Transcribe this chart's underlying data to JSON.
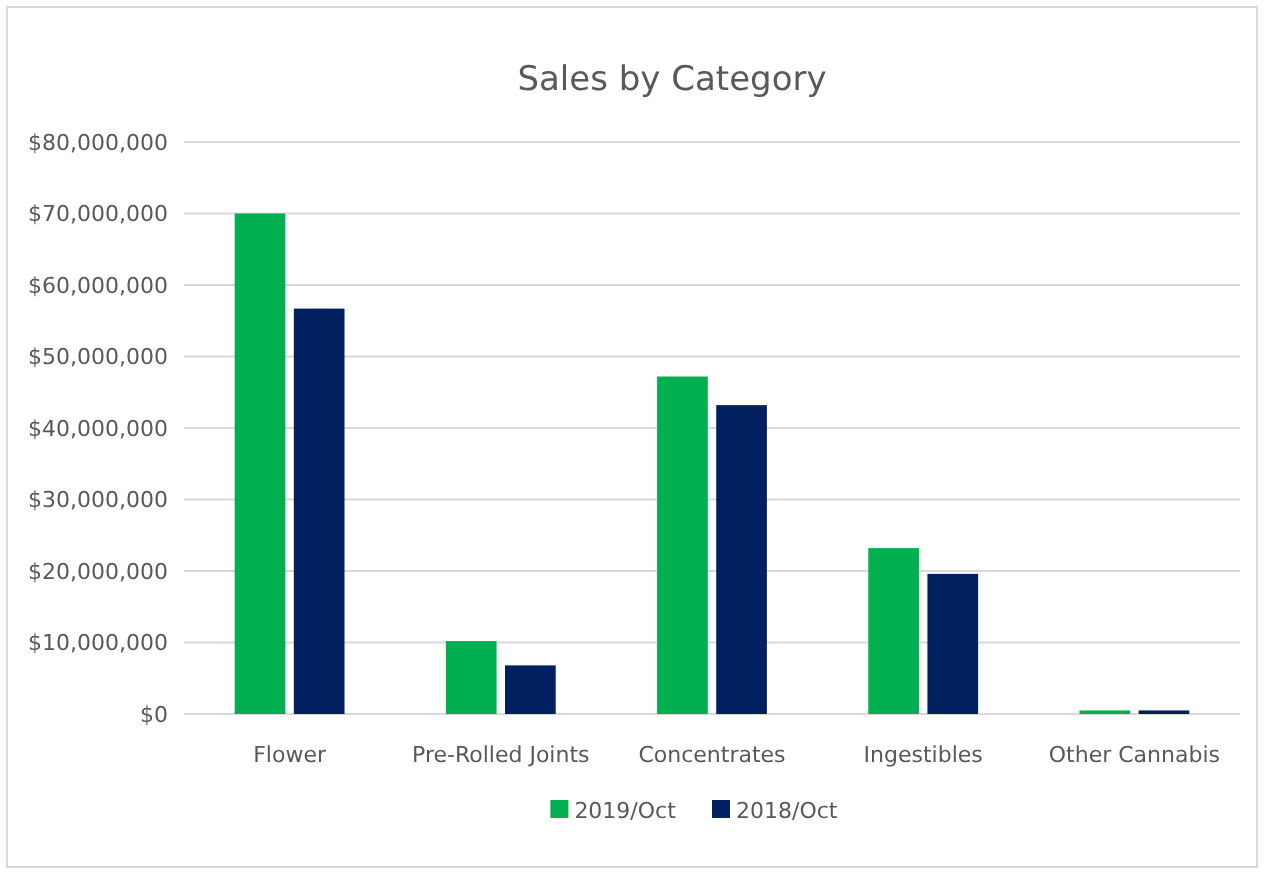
{
  "chart_data": {
    "type": "bar",
    "title": "Sales by Category",
    "categories": [
      "Flower",
      "Pre-Rolled Joints",
      "Concentrates",
      "Ingestibles",
      "Other Cannabis"
    ],
    "series": [
      {
        "name": "2019/Oct",
        "color": "#00b050",
        "values": [
          70000000,
          10200000,
          47200000,
          23200000,
          500000
        ]
      },
      {
        "name": "2018/Oct",
        "color": "#002060",
        "values": [
          56700000,
          6800000,
          43200000,
          19600000,
          500000
        ]
      }
    ],
    "ylim": [
      0,
      80000000
    ],
    "yticks": [
      {
        "value": 0,
        "label": "$0"
      },
      {
        "value": 10000000,
        "label": "$10,000,000"
      },
      {
        "value": 20000000,
        "label": "$20,000,000"
      },
      {
        "value": 30000000,
        "label": "$30,000,000"
      },
      {
        "value": 40000000,
        "label": "$40,000,000"
      },
      {
        "value": 50000000,
        "label": "$50,000,000"
      },
      {
        "value": 60000000,
        "label": "$60,000,000"
      },
      {
        "value": 70000000,
        "label": "$70,000,000"
      },
      {
        "value": 80000000,
        "label": "$80,000,000"
      }
    ],
    "grid": "y",
    "legend": "bottom"
  }
}
